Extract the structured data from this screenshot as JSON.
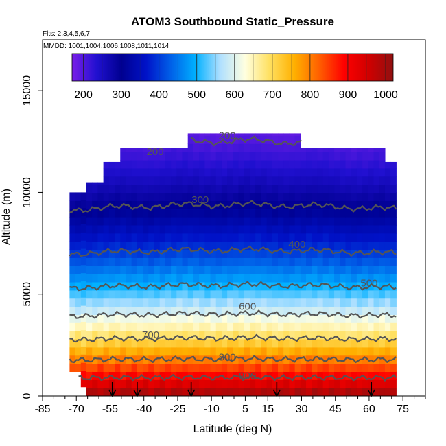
{
  "chart_data": {
    "type": "heatmap",
    "title": "ATOM3 Southbound Static_Pressure",
    "flights_note": "Flts: 2,3,4,5,6,7",
    "dates_note": "MMDD: 1001,1004,1006,1008,1011,1014",
    "xlabel": "Latitude (deg N)",
    "ylabel": "Altitude (m)",
    "xlim": [
      -85,
      85
    ],
    "ylim": [
      0,
      17500
    ],
    "x_tick_labels": [
      "-85",
      "-70",
      "-55",
      "-40",
      "-25",
      "-10",
      "5",
      "15",
      "30",
      "45",
      "60",
      "75"
    ],
    "x_tick_values": [
      -85,
      -70,
      -55,
      -40,
      -25,
      -10,
      5,
      15,
      30,
      45,
      60,
      75
    ],
    "y_tick_labels": [
      "0",
      "5000",
      "10000",
      "15000"
    ],
    "y_tick_values": [
      0,
      5000,
      10000,
      15000
    ],
    "colorbar": {
      "min": 170,
      "max": 1020,
      "tick_labels": [
        "200",
        "300",
        "400",
        "500",
        "600",
        "700",
        "800",
        "900",
        "1000"
      ],
      "tick_values": [
        200,
        300,
        400,
        500,
        600,
        700,
        800,
        900,
        1000
      ],
      "colors": [
        "#7a1ee8",
        "#2010d0",
        "#000090",
        "#0012c8",
        "#0060e8",
        "#00b0ff",
        "#b0e0ff",
        "#ffffe0",
        "#ffe060",
        "#ffb000",
        "#ff6000",
        "#ff0000",
        "#d00000",
        "#901010"
      ]
    },
    "coverage": {
      "lat_range": [
        -73,
        72
      ],
      "top_altitude": [
        [
          -73,
          10000
        ],
        [
          -65,
          10500
        ],
        [
          -57,
          11500
        ],
        [
          -50,
          12200
        ],
        [
          -25,
          12200
        ],
        [
          -20,
          12900
        ],
        [
          -5,
          12900
        ],
        [
          22,
          12900
        ],
        [
          30,
          12200
        ],
        [
          50,
          12200
        ],
        [
          62,
          12200
        ],
        [
          68,
          11500
        ],
        [
          72,
          11000
        ]
      ]
    },
    "contour_labels": [
      {
        "text": "200",
        "lat": -35,
        "alt": 12000
      },
      {
        "text": "200",
        "lat": -3,
        "alt": 12800
      },
      {
        "text": "300",
        "lat": -15,
        "alt": 9650
      },
      {
        "text": "400",
        "lat": 28,
        "alt": 7450
      },
      {
        "text": "500",
        "lat": 60,
        "alt": 5550
      },
      {
        "text": "600",
        "lat": 6,
        "alt": 4400
      },
      {
        "text": "700",
        "lat": -37,
        "alt": 3000
      },
      {
        "text": "800",
        "lat": -3,
        "alt": 1900
      },
      {
        "text": "900",
        "lat": 6,
        "alt": 1000
      }
    ],
    "arrows_lat": [
      -54,
      -43,
      -19,
      19,
      61
    ]
  }
}
